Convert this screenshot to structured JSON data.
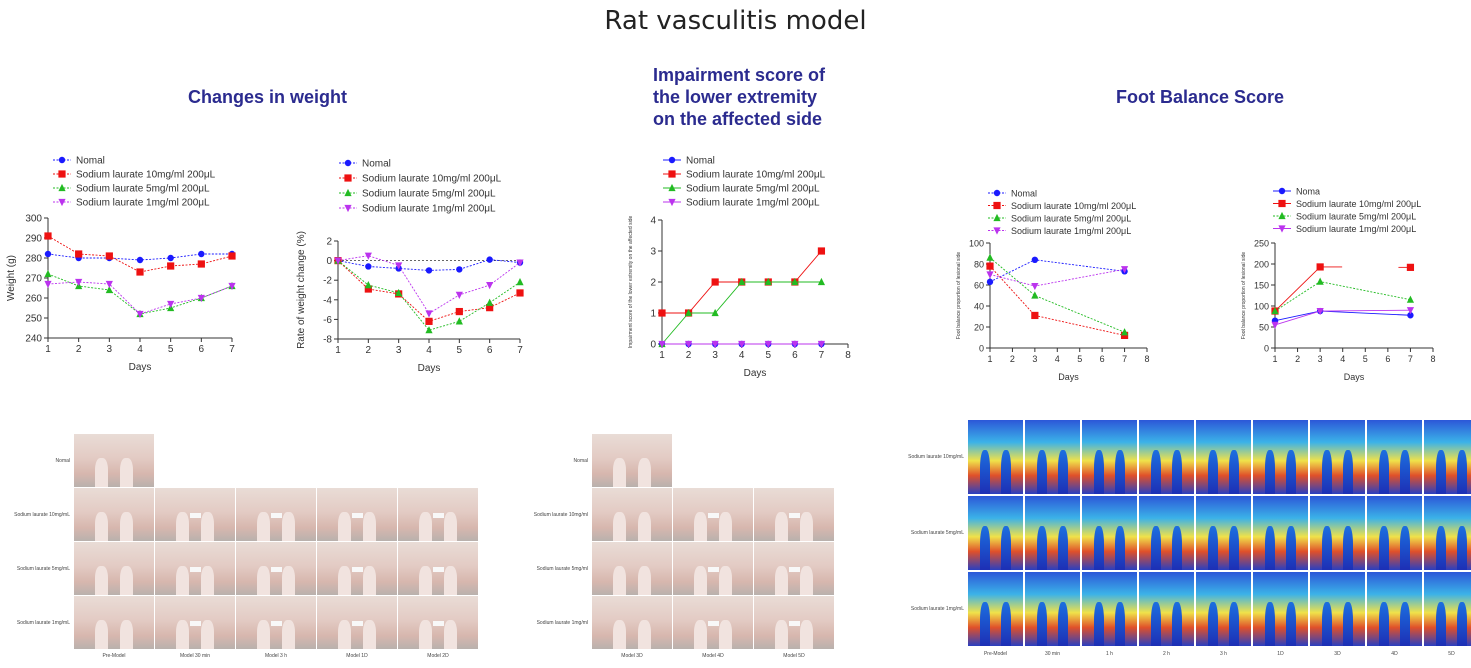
{
  "page": {
    "title": "Rat vasculitis model",
    "section_titles": {
      "weight": "Changes in weight",
      "impairment": [
        "Impairment score of",
        "the lower extremity",
        "on the affected side"
      ],
      "balance": "Foot Balance Score"
    }
  },
  "colors": {
    "nomal": "#1a1aff",
    "s10": "#ee1111",
    "s5": "#22bb22",
    "s1": "#bb33ee",
    "title": "#2b2b8f"
  },
  "chart_data": [
    {
      "id": "weight",
      "type": "line",
      "xlabel": "Days",
      "ylabel": "Weight (g)",
      "xlim": [
        1,
        7
      ],
      "ylim": [
        240,
        300
      ],
      "x_ticks": [
        "1",
        "2",
        "3",
        "4",
        "5",
        "6",
        "7"
      ],
      "y_ticks": [
        "240",
        "250",
        "260",
        "270",
        "280",
        "290",
        "300"
      ],
      "legend_position": "top-left",
      "series": [
        {
          "name": "Nomal",
          "color_key": "nomal",
          "marker": "circle",
          "dash": true,
          "x": [
            1,
            2,
            3,
            4,
            5,
            6,
            7
          ],
          "y": [
            282,
            280,
            280,
            279,
            280,
            282,
            282
          ]
        },
        {
          "name": "Sodium laurate 10mg/ml 200μL",
          "color_key": "s10",
          "marker": "square",
          "dash": true,
          "x": [
            1,
            2,
            3,
            4,
            5,
            6,
            7
          ],
          "y": [
            291,
            282,
            281,
            273,
            276,
            277,
            281
          ]
        },
        {
          "name": "Sodium laurate 5mg/ml 200μL",
          "color_key": "s5",
          "marker": "triangle",
          "dash": true,
          "x": [
            1,
            2,
            3,
            4,
            5,
            6,
            7
          ],
          "y": [
            272,
            266,
            264,
            252,
            255,
            260,
            266
          ]
        },
        {
          "name": "Sodium laurate 1mg/ml 200μL",
          "color_key": "s1",
          "marker": "tri-down",
          "dash": true,
          "x": [
            1,
            2,
            3,
            4,
            5,
            6,
            7
          ],
          "y": [
            267,
            268,
            267,
            252,
            257,
            260,
            266
          ]
        }
      ]
    },
    {
      "id": "rate",
      "type": "line",
      "xlabel": "Days",
      "ylabel": "Rate of weight change (%)",
      "xlim": [
        1,
        7
      ],
      "ylim": [
        -8,
        2
      ],
      "x_ticks": [
        "1",
        "2",
        "3",
        "4",
        "5",
        "6",
        "7"
      ],
      "y_ticks": [
        "-8",
        "-6",
        "-4",
        "-2",
        "0",
        "2"
      ],
      "zero_line": true,
      "legend_position": "top",
      "series": [
        {
          "name": "Nomal",
          "color_key": "nomal",
          "marker": "circle",
          "dash": true,
          "x": [
            1,
            2,
            3,
            4,
            5,
            6,
            7
          ],
          "y": [
            0,
            -0.6,
            -0.8,
            -1.0,
            -0.9,
            0.1,
            -0.2
          ]
        },
        {
          "name": "Sodium laurate 10mg/ml 200μL",
          "color_key": "s10",
          "marker": "square",
          "dash": true,
          "x": [
            1,
            2,
            3,
            4,
            5,
            6,
            7
          ],
          "y": [
            0,
            -2.9,
            -3.4,
            -6.2,
            -5.2,
            -4.8,
            -3.3
          ]
        },
        {
          "name": "Sodium laurate 5mg/ml 200μL",
          "color_key": "s5",
          "marker": "triangle",
          "dash": true,
          "x": [
            1,
            2,
            3,
            4,
            5,
            6,
            7
          ],
          "y": [
            0,
            -2.5,
            -3.3,
            -7.1,
            -6.2,
            -4.3,
            -2.2
          ]
        },
        {
          "name": "Sodium laurate 1mg/ml 200μL",
          "color_key": "s1",
          "marker": "tri-down",
          "dash": true,
          "x": [
            1,
            2,
            3,
            4,
            5,
            6,
            7
          ],
          "y": [
            0,
            0.5,
            -0.5,
            -5.4,
            -3.5,
            -2.5,
            -0.2
          ]
        }
      ]
    },
    {
      "id": "impairment",
      "type": "line",
      "xlabel": "Days",
      "ylabel": "Impairment score of the lower extremity on the affected side",
      "xlim": [
        1,
        8
      ],
      "ylim": [
        0,
        4
      ],
      "x_ticks": [
        "1",
        "2",
        "3",
        "4",
        "5",
        "6",
        "7",
        "8"
      ],
      "y_ticks": [
        "0",
        "1",
        "2",
        "3",
        "4"
      ],
      "legend_position": "top",
      "series": [
        {
          "name": "Nomal",
          "color_key": "nomal",
          "marker": "circle",
          "dash": false,
          "x": [
            1,
            2,
            3,
            4,
            5,
            6,
            7
          ],
          "y": [
            0,
            0,
            0,
            0,
            0,
            0,
            0
          ]
        },
        {
          "name": "Sodium laurate 10mg/ml 200μL",
          "color_key": "s10",
          "marker": "square",
          "dash": false,
          "x": [
            1,
            2,
            3,
            4,
            5,
            6,
            7
          ],
          "y": [
            1,
            1,
            2,
            2,
            2,
            2,
            3
          ]
        },
        {
          "name": "Sodium laurate 5mg/ml 200μL",
          "color_key": "s5",
          "marker": "triangle",
          "dash": false,
          "x": [
            1,
            2,
            3,
            4,
            5,
            6,
            7
          ],
          "y": [
            0,
            1,
            1,
            2,
            2,
            2,
            2
          ]
        },
        {
          "name": "Sodium laurate 1mg/ml 200μL",
          "color_key": "s1",
          "marker": "tri-down",
          "dash": false,
          "x": [
            1,
            2,
            3,
            4,
            5,
            6,
            7
          ],
          "y": [
            0,
            0,
            0,
            0,
            0,
            0,
            0
          ]
        }
      ]
    },
    {
      "id": "balance1",
      "type": "line",
      "xlabel": "Days",
      "ylabel": "Foot balance proportion of lesional side",
      "xlim": [
        1,
        8
      ],
      "ylim": [
        0,
        100
      ],
      "x_ticks": [
        "1",
        "2",
        "3",
        "4",
        "5",
        "6",
        "7",
        "8"
      ],
      "y_ticks": [
        "0",
        "20",
        "40",
        "60",
        "80",
        "100"
      ],
      "legend_position": "top",
      "series": [
        {
          "name": "Nomal",
          "color_key": "nomal",
          "marker": "circle",
          "dash": true,
          "x": [
            1,
            3,
            7
          ],
          "y": [
            63,
            84,
            73
          ]
        },
        {
          "name": "Sodium laurate 10mg/ml 200μL",
          "color_key": "s10",
          "marker": "square",
          "dash": true,
          "x": [
            1,
            3,
            7
          ],
          "y": [
            78,
            31,
            12
          ]
        },
        {
          "name": "Sodium laurate 5mg/ml 200μL",
          "color_key": "s5",
          "marker": "triangle",
          "dash": true,
          "x": [
            1,
            3,
            7
          ],
          "y": [
            86,
            50,
            15
          ]
        },
        {
          "name": "Sodium laurate 1mg/ml 200μL",
          "color_key": "s1",
          "marker": "tri-down",
          "dash": true,
          "x": [
            1,
            3,
            7
          ],
          "y": [
            70,
            59,
            75
          ]
        }
      ]
    },
    {
      "id": "balance2",
      "type": "line",
      "xlabel": "Days",
      "ylabel": "Foot balance proportion of lesional side",
      "xlim": [
        1,
        8
      ],
      "ylim": [
        0,
        250
      ],
      "x_ticks": [
        "1",
        "2",
        "3",
        "4",
        "5",
        "6",
        "7",
        "8"
      ],
      "y_ticks": [
        "0",
        "50",
        "100",
        "150",
        "200",
        "250"
      ],
      "legend_position": "top",
      "series": [
        {
          "name": "Noma",
          "color_key": "nomal",
          "marker": "circle",
          "dash": false,
          "x": [
            1,
            3,
            7
          ],
          "y": [
            65,
            88,
            78
          ]
        },
        {
          "name": "Sodium laurate 10mg/ml 200μL",
          "color_key": "s10",
          "marker": "square",
          "dash": false,
          "x": [
            1,
            3,
            7
          ],
          "y": [
            88,
            193,
            192
          ],
          "gap_after_index": 1
        },
        {
          "name": "Sodium laurate 5mg/ml 200μL",
          "color_key": "s5",
          "marker": "triangle",
          "dash": true,
          "x": [
            1,
            3,
            7
          ],
          "y": [
            88,
            158,
            115
          ]
        },
        {
          "name": "Sodium laurate 1mg/ml 200μL",
          "color_key": "s1",
          "marker": "tri-down",
          "dash": false,
          "x": [
            1,
            3,
            7
          ],
          "y": [
            55,
            88,
            90
          ]
        }
      ]
    }
  ],
  "photos": {
    "panel1": {
      "rows": [
        "Nomal",
        "Sodium laurate 10mg/mL",
        "Sodium laurate 5mg/mL",
        "Sodium laurate 1mg/mL"
      ],
      "cols": [
        "Pre-Model",
        "Model 30 min",
        "Model 3 h",
        "Model 1D",
        "Model 2D"
      ]
    },
    "panel2": {
      "rows": [
        "Nomal",
        "Sodium laurate 10mg/ml",
        "Sodium laurate 5mg/ml",
        "Sodium laurate 1mg/ml"
      ],
      "cols": [
        "Model 3D",
        "Model 4D",
        "Model 5D"
      ]
    },
    "panel3": {
      "rows": [
        "Sodium laurate 10mg/mL",
        "Sodium laurate 5mg/mL",
        "Sodium laurate 1mg/mL"
      ],
      "cols": [
        "Pre-Model",
        "30 min",
        "1 h",
        "2 h",
        "3 h",
        "1D",
        "3D",
        "4D",
        "5D"
      ]
    }
  }
}
